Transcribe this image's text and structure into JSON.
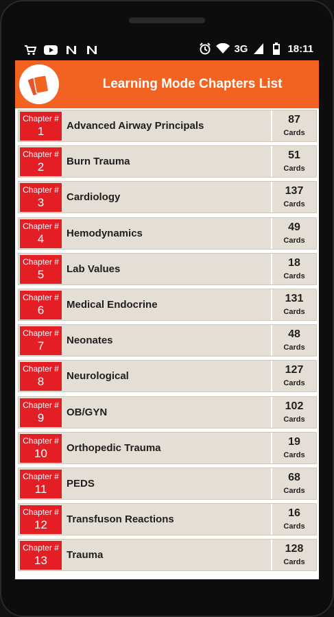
{
  "status_bar": {
    "time": "18:11",
    "network": "3G",
    "left_icons": [
      "cart-icon",
      "youtube-icon",
      "n-icon",
      "n-icon"
    ],
    "right_icons": [
      "alarm-icon",
      "wifi-icon",
      "signal-icon",
      "battery-icon"
    ]
  },
  "app_bar": {
    "title": "Learning Mode Chapters List",
    "logo_icon": "flashcards-icon",
    "color": "#f26322"
  },
  "colors": {
    "chapter_badge": "#e31e25",
    "row_bg": "#e5ded4"
  },
  "chapters": [
    {
      "label": "Chapter #",
      "number": "1",
      "name": "Advanced Airway Principals",
      "count": "87",
      "count_label": "Cards"
    },
    {
      "label": "Chapter #",
      "number": "2",
      "name": "Burn Trauma",
      "count": "51",
      "count_label": "Cards"
    },
    {
      "label": "Chapter #",
      "number": "3",
      "name": "Cardiology",
      "count": "137",
      "count_label": "Cards"
    },
    {
      "label": "Chapter #",
      "number": "4",
      "name": "Hemodynamics",
      "count": "49",
      "count_label": "Cards"
    },
    {
      "label": "Chapter #",
      "number": "5",
      "name": "Lab Values",
      "count": "18",
      "count_label": "Cards"
    },
    {
      "label": "Chapter #",
      "number": "6",
      "name": "Medical Endocrine",
      "count": "131",
      "count_label": "Cards"
    },
    {
      "label": "Chapter #",
      "number": "7",
      "name": "Neonates",
      "count": "48",
      "count_label": "Cards"
    },
    {
      "label": "Chapter #",
      "number": "8",
      "name": "Neurological",
      "count": "127",
      "count_label": "Cards"
    },
    {
      "label": "Chapter #",
      "number": "9",
      "name": "OB/GYN",
      "count": "102",
      "count_label": "Cards"
    },
    {
      "label": "Chapter #",
      "number": "10",
      "name": "Orthopedic Trauma",
      "count": "19",
      "count_label": "Cards"
    },
    {
      "label": "Chapter #",
      "number": "11",
      "name": "PEDS",
      "count": "68",
      "count_label": "Cards"
    },
    {
      "label": "Chapter #",
      "number": "12",
      "name": "Transfuson Reactions",
      "count": "16",
      "count_label": "Cards"
    },
    {
      "label": "Chapter #",
      "number": "13",
      "name": "Trauma",
      "count": "128",
      "count_label": "Cards"
    }
  ]
}
